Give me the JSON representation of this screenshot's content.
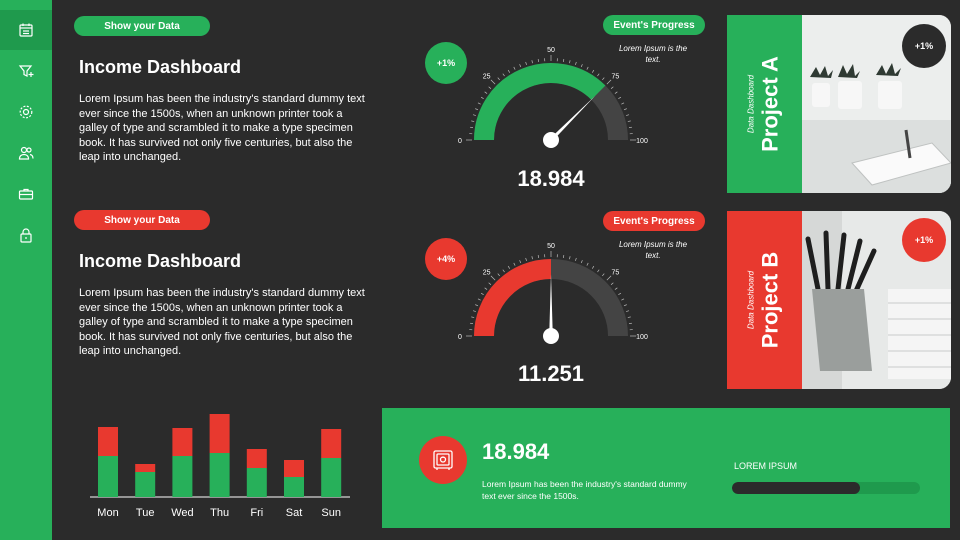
{
  "sidebar": {
    "items": [
      {
        "icon": "calendar-icon"
      },
      {
        "icon": "filter-icon"
      },
      {
        "icon": "gear-icon"
      },
      {
        "icon": "users-icon"
      },
      {
        "icon": "briefcase-icon"
      },
      {
        "icon": "lock-icon"
      }
    ]
  },
  "section1": {
    "pill": "Show your Data",
    "title": "Income Dashboard",
    "text": "Lorem Ipsum has been the industry's standard dummy text ever since the 1500s, when an unknown printer took a galley of type and scrambled it to make a type specimen book. It has survived not only five centuries, but also the leap into unchanged."
  },
  "section2": {
    "pill": "Show your Data",
    "title": "Income Dashboard",
    "text": "Lorem Ipsum has been the industry's standard dummy text ever since the 1500s, when an unknown printer took a galley of type and scrambled it to make a type specimen book. It has survived not only five centuries, but also the leap into unchanged."
  },
  "gauge1": {
    "badge": "+1%",
    "pill": "Event's Progress",
    "note": "Lorem Ipsum is the text.",
    "ticks": [
      "0",
      "25",
      "50",
      "75",
      "100"
    ],
    "progress": 75,
    "value": "18.984",
    "color": "#27b05a"
  },
  "gauge2": {
    "badge": "+4%",
    "pill": "Event's Progress",
    "note": "Lorem Ipsum is the text.",
    "ticks": [
      "0",
      "25",
      "50",
      "75",
      "100"
    ],
    "progress": 50,
    "value": "11.251",
    "color": "#e8392f"
  },
  "projectA": {
    "subtitle": "Data Dashboard",
    "title": "Project A",
    "badge": "+1%"
  },
  "projectB": {
    "subtitle": "Data Dashboard",
    "title": "Project B",
    "badge": "+1%"
  },
  "bottom": {
    "value": "18.984",
    "text": "Lorem Ipsum has been the industry's standard dummy text ever since the 1500s.",
    "label": "LOREM IPSUM",
    "progress": 0.68,
    "icon": "safe-icon"
  },
  "chart_data": {
    "type": "bar",
    "categories": [
      "Mon",
      "Tue",
      "Wed",
      "Thu",
      "Fri",
      "Sat",
      "Sun"
    ],
    "series": [
      {
        "values": [
          41,
          25,
          41,
          44,
          29,
          20,
          39
        ]
      },
      {
        "values": [
          29,
          8,
          28,
          39,
          19,
          17,
          29
        ]
      }
    ],
    "stacked": true,
    "colors": [
      "#27b05a",
      "#e8392f"
    ]
  }
}
